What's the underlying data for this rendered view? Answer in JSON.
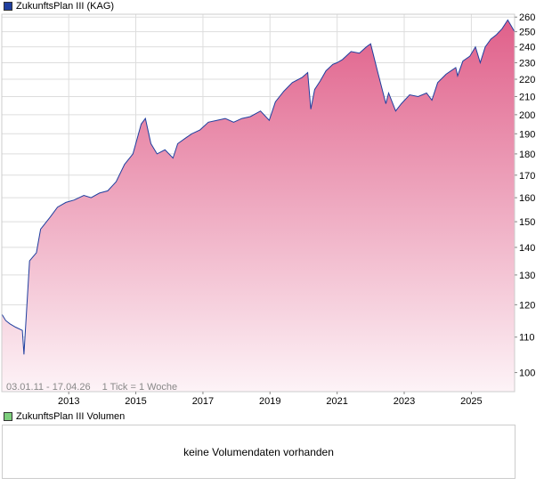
{
  "colors": {
    "main_series": "#1f3f9f",
    "area_top": "#e0608a",
    "area_bottom": "#fdf3f7",
    "volume_swatch": "#7dcf7d",
    "grid": "#dddddd"
  },
  "legend_main": {
    "label": "ZukunftsPlan III (KAG)"
  },
  "legend_volume": {
    "label": "ZukunftsPlan III Volumen"
  },
  "footer": {
    "range": "03.01.11 - 17.04.26",
    "tick": "1 Tick = 1 Woche"
  },
  "volume_panel": {
    "message": "keine Volumendaten vorhanden"
  },
  "chart_data": {
    "type": "area",
    "y_scale": "log",
    "ylim": [
      95,
      262
    ],
    "xlim": [
      "2011-01-03",
      "2026-04-17"
    ],
    "y_ticks": [
      100,
      110,
      120,
      130,
      140,
      150,
      160,
      170,
      180,
      190,
      200,
      210,
      220,
      230,
      240,
      250,
      260
    ],
    "x_ticks": [
      "2013",
      "2015",
      "2017",
      "2019",
      "2021",
      "2023",
      "2025"
    ],
    "grid": true,
    "series": [
      {
        "name": "ZukunftsPlan III (KAG)",
        "x": [
          "2011-01-03",
          "2011-02-15",
          "2011-04-01",
          "2011-06-01",
          "2011-08-15",
          "2011-09-01",
          "2011-11-01",
          "2012-01-15",
          "2012-03-01",
          "2012-06-15",
          "2012-09-01",
          "2012-12-01",
          "2013-03-01",
          "2013-06-15",
          "2013-09-01",
          "2013-12-01",
          "2014-03-01",
          "2014-06-01",
          "2014-09-01",
          "2014-12-01",
          "2015-03-01",
          "2015-04-15",
          "2015-06-15",
          "2015-08-20",
          "2015-11-15",
          "2016-02-10",
          "2016-04-01",
          "2016-07-01",
          "2016-09-01",
          "2016-12-01",
          "2017-03-01",
          "2017-06-01",
          "2017-09-01",
          "2017-12-01",
          "2018-03-01",
          "2018-06-01",
          "2018-09-20",
          "2018-12-24",
          "2019-03-01",
          "2019-06-01",
          "2019-09-01",
          "2019-12-15",
          "2020-02-15",
          "2020-03-20",
          "2020-05-01",
          "2020-07-01",
          "2020-09-01",
          "2020-11-15",
          "2021-01-01",
          "2021-03-01",
          "2021-06-01",
          "2021-09-01",
          "2021-11-15",
          "2022-01-01",
          "2022-03-15",
          "2022-06-15",
          "2022-07-15",
          "2022-09-30",
          "2022-12-01",
          "2023-03-01",
          "2023-06-01",
          "2023-09-01",
          "2023-10-30",
          "2024-01-01",
          "2024-04-01",
          "2024-07-15",
          "2024-08-05",
          "2024-10-01",
          "2024-12-15",
          "2025-02-15",
          "2025-04-08",
          "2025-06-01",
          "2025-08-01",
          "2025-10-01",
          "2025-12-01",
          "2026-02-01",
          "2026-04-17"
        ],
        "y": [
          117,
          115,
          114,
          113,
          112,
          105,
          135,
          138,
          147,
          152,
          156,
          158,
          159,
          161,
          160,
          162,
          163,
          167,
          175,
          180,
          195,
          198,
          185,
          180,
          182,
          178,
          185,
          188,
          190,
          192,
          196,
          197,
          198,
          196,
          198,
          199,
          202,
          197,
          207,
          213,
          218,
          221,
          224,
          203,
          214,
          219,
          225,
          229,
          230,
          232,
          237,
          236,
          240,
          242,
          225,
          206,
          212,
          202,
          206,
          211,
          210,
          212,
          208,
          218,
          223,
          227,
          222,
          231,
          234,
          240,
          230,
          240,
          245,
          248,
          252,
          258,
          250
        ]
      }
    ]
  }
}
